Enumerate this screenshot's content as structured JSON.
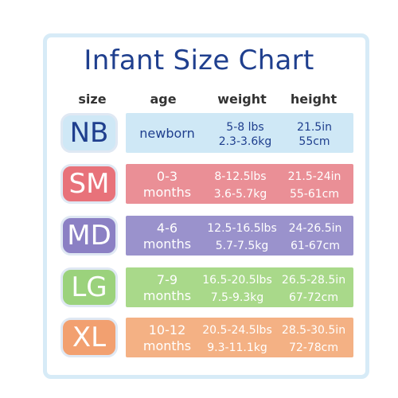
{
  "title": "Infant Size Chart",
  "headers": {
    "size": "size",
    "age": "age",
    "weight": "weight",
    "height": "height"
  },
  "rows": [
    {
      "size": "NB",
      "age": [
        "newborn",
        ""
      ],
      "weight": [
        "5-8 lbs",
        "2.3-3.6kg"
      ],
      "height": [
        "21.5in",
        "55cm"
      ]
    },
    {
      "size": "SM",
      "age": [
        "0-3",
        "months"
      ],
      "weight": [
        "8-12.5lbs",
        "3.6-5.7kg"
      ],
      "height": [
        "21.5-24in",
        "55-61cm"
      ]
    },
    {
      "size": "MD",
      "age": [
        "4-6",
        "months"
      ],
      "weight": [
        "12.5-16.5lbs",
        "5.7-7.5kg"
      ],
      "height": [
        "24-26.5in",
        "61-67cm"
      ]
    },
    {
      "size": "LG",
      "age": [
        "7-9",
        "months"
      ],
      "weight": [
        "16.5-20.5lbs",
        "7.5-9.3kg"
      ],
      "height": [
        "26.5-28.5in",
        "67-72cm"
      ]
    },
    {
      "size": "XL",
      "age": [
        "10-12",
        "months"
      ],
      "weight": [
        "20.5-24.5lbs",
        "9.3-11.1kg"
      ],
      "height": [
        "28.5-30.5in",
        "72-78cm"
      ]
    }
  ],
  "colors": {
    "title": "#1f3f8e",
    "frame": "#d7ebf7",
    "nb_badge": "#cfe8f6",
    "nb_band": "#cfe8f6",
    "nb_text": "#1f3f8e",
    "sm_badge": "#e8727a",
    "sm_band": "#ea8f96",
    "md_badge": "#8b80c4",
    "md_band": "#9a92cc",
    "lg_badge": "#9bd27c",
    "lg_band": "#a9d98a",
    "xl_badge": "#f2a070",
    "xl_band": "#f4b184",
    "row_text_light": "#ffffff"
  }
}
